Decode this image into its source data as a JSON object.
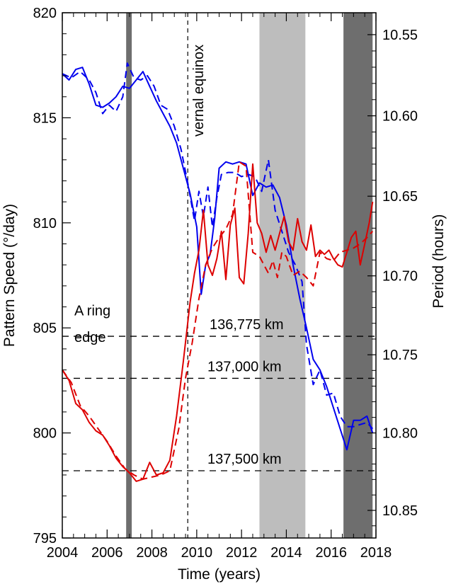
{
  "chart_data": {
    "type": "line",
    "xlabel": "Time (years)",
    "ylabel": "Pattern Speed (°/day)",
    "y2label": "Period (hours)",
    "xlim": [
      2004,
      2018
    ],
    "ylim": [
      795,
      820
    ],
    "x_ticks": [
      "2004",
      "2006",
      "2008",
      "2010",
      "2012",
      "2014",
      "2016",
      "2018"
    ],
    "y_ticks": [
      "795",
      "800",
      "805",
      "810",
      "815",
      "820"
    ],
    "y2_ticks": [
      "10.55",
      "10.60",
      "10.65",
      "10.70",
      "10.75",
      "10.80",
      "10.85"
    ],
    "shaded_bands": [
      {
        "x": [
          2006.85,
          2007.1
        ],
        "color": "#6e6e6e"
      },
      {
        "x": [
          2012.8,
          2014.85
        ],
        "color": "#bdbdbd"
      },
      {
        "x": [
          2016.55,
          2017.85
        ],
        "color": "#6e6e6e"
      }
    ],
    "vertical_marker": {
      "x": 2009.6,
      "label": "vernal equinox"
    },
    "reference_lines": [
      {
        "y": 804.6,
        "label": "136,775 km"
      },
      {
        "y": 802.6,
        "label": "137,000 km"
      },
      {
        "y": 798.2,
        "label": "137,500 km"
      }
    ],
    "annotation": [
      "A ring",
      "edge"
    ],
    "series": [
      {
        "color": "#0000ee",
        "style": "solid",
        "x": [
          2004,
          2004.3,
          2004.6,
          2004.9,
          2005.2,
          2005.5,
          2005.8,
          2006.1,
          2006.4,
          2006.7,
          2007.0,
          2007.3,
          2007.6,
          2007.9,
          2008.2,
          2008.5,
          2008.8,
          2009.1,
          2009.4,
          2009.7,
          2010.0,
          2010.2,
          2010.4,
          2010.6,
          2010.8,
          2011.0,
          2011.3,
          2011.6,
          2011.9,
          2012.2,
          2012.5,
          2012.8,
          2013.1,
          2013.4,
          2013.7,
          2014.0,
          2014.3,
          2014.6,
          2014.9,
          2015.2,
          2015.5,
          2015.8,
          2016.1,
          2016.4,
          2016.7,
          2017.0,
          2017.3,
          2017.6,
          2017.85
        ],
        "y": [
          817.1,
          816.8,
          817.3,
          817.4,
          816.6,
          815.6,
          815.5,
          815.7,
          816.0,
          816.5,
          816.4,
          816.8,
          817.2,
          816.5,
          815.8,
          815.2,
          814.6,
          813.8,
          812.6,
          811.4,
          809.8,
          806.6,
          808.0,
          808.5,
          810.2,
          812.6,
          812.9,
          812.8,
          812.9,
          812.8,
          811.3,
          811.9,
          811.7,
          811.8,
          811.2,
          809.9,
          808.0,
          806.4,
          805.0,
          803.5,
          803.0,
          802.2,
          801.2,
          800.2,
          799.2,
          800.6,
          800.6,
          800.8,
          800.0
        ]
      },
      {
        "color": "#0000ee",
        "style": "dashed",
        "x": [
          2004,
          2004.4,
          2004.8,
          2005.2,
          2005.5,
          2005.8,
          2006.1,
          2006.4,
          2006.7,
          2006.9,
          2007.2,
          2007.5,
          2007.8,
          2008.1,
          2008.4,
          2008.7,
          2009.0,
          2009.3,
          2009.6,
          2009.9,
          2010.1,
          2010.3,
          2010.5,
          2010.7,
          2010.9,
          2011.1,
          2011.4,
          2011.7,
          2012.0,
          2012.3,
          2012.6,
          2012.9,
          2013.2,
          2013.5,
          2013.8,
          2014.1,
          2014.4,
          2014.7,
          2014.9,
          2015.2,
          2015.5,
          2015.8,
          2016.1,
          2016.4,
          2016.7,
          2017.0,
          2017.3,
          2017.6,
          2017.85
        ],
        "y": [
          817.1,
          816.9,
          817.2,
          816.8,
          816.2,
          815.2,
          815.6,
          815.3,
          816.0,
          817.6,
          816.9,
          816.8,
          817.0,
          816.5,
          815.6,
          815.4,
          814.6,
          813.5,
          811.9,
          810.1,
          811.5,
          810.3,
          811.7,
          809.8,
          811.2,
          812.3,
          812.4,
          812.4,
          812.2,
          812.3,
          812.2,
          811.5,
          813.0,
          810.6,
          809.6,
          808.6,
          808.0,
          807.2,
          804.2,
          802.3,
          803.0,
          801.8,
          801.9,
          800.8,
          800.3,
          800.3,
          800.4,
          800.5,
          800.2
        ]
      },
      {
        "color": "#dd0000",
        "style": "solid",
        "x": [
          2004,
          2004.3,
          2004.6,
          2004.9,
          2005.2,
          2005.5,
          2005.8,
          2006.1,
          2006.4,
          2006.7,
          2007.0,
          2007.3,
          2007.6,
          2007.9,
          2008.2,
          2008.5,
          2008.8,
          2009.1,
          2009.4,
          2009.7,
          2009.9,
          2010.1,
          2010.3,
          2010.5,
          2010.7,
          2010.9,
          2011.1,
          2011.3,
          2011.5,
          2011.7,
          2011.9,
          2012.1,
          2012.3,
          2012.5,
          2012.7,
          2012.9,
          2013.1,
          2013.3,
          2013.5,
          2013.7,
          2013.9,
          2014.1,
          2014.3,
          2014.5,
          2014.7,
          2014.9,
          2015.1,
          2015.3,
          2015.5,
          2015.7,
          2015.9,
          2016.1,
          2016.3,
          2016.5,
          2016.7,
          2016.9,
          2017.1,
          2017.3,
          2017.5,
          2017.7,
          2017.85
        ],
        "y": [
          803.0,
          802.5,
          801.4,
          801.1,
          800.5,
          800.1,
          799.9,
          799.4,
          798.8,
          798.4,
          798.1,
          797.7,
          797.8,
          798.6,
          798.0,
          798.1,
          798.7,
          800.8,
          803.4,
          806.2,
          807.6,
          808.7,
          810.6,
          808.0,
          807.5,
          808.3,
          809.6,
          807.3,
          809.9,
          810.7,
          807.4,
          807.1,
          809.5,
          812.8,
          810.0,
          809.5,
          808.6,
          809.4,
          808.7,
          809.5,
          810.3,
          809.1,
          808.7,
          810.2,
          809.1,
          808.7,
          809.9,
          808.4,
          808.7,
          808.5,
          808.7,
          808.3,
          808.0,
          807.9,
          808.6,
          809.3,
          809.6,
          808.0,
          809.0,
          810.0,
          811.0
        ]
      },
      {
        "color": "#dd0000",
        "style": "dashed",
        "x": [
          2004,
          2004.4,
          2004.8,
          2005.2,
          2005.6,
          2006.0,
          2006.4,
          2006.8,
          2007.2,
          2007.6,
          2008.0,
          2008.4,
          2008.8,
          2009.2,
          2009.5,
          2009.8,
          2010.1,
          2010.4,
          2010.7,
          2011.0,
          2011.3,
          2011.6,
          2011.9,
          2012.2,
          2012.5,
          2012.8,
          2013.0,
          2013.2,
          2013.4,
          2013.6,
          2013.8,
          2014.0,
          2014.3,
          2014.6,
          2014.9,
          2015.2,
          2015.5,
          2015.8,
          2016.1,
          2016.4,
          2016.7,
          2017.0,
          2017.3,
          2017.6,
          2017.85
        ],
        "y": [
          803.0,
          802.4,
          801.3,
          800.8,
          800.2,
          799.6,
          798.9,
          798.3,
          798.0,
          797.8,
          797.9,
          798.0,
          798.2,
          800.2,
          802.6,
          804.3,
          806.4,
          808.0,
          808.8,
          809.3,
          809.7,
          810.4,
          812.9,
          812.7,
          808.6,
          808.4,
          808.0,
          807.6,
          808.2,
          807.4,
          808.6,
          808.4,
          807.5,
          807.7,
          807.4,
          807.0,
          808.6,
          808.3,
          808.2,
          808.6,
          808.7,
          808.8,
          809.0,
          809.3,
          809.6
        ]
      }
    ]
  }
}
